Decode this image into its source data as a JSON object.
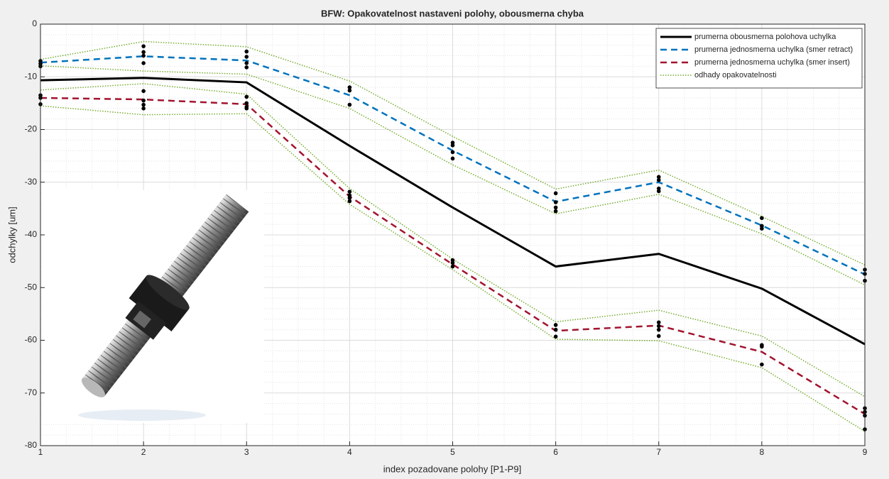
{
  "chart_data": {
    "type": "line",
    "title": "BFW: Opakovatelnost nastaveni polohy, obousmerna chyba",
    "x_label": "index pozadovane polohy [P1-P9]",
    "y_label": "odchylky [um]",
    "x": [
      1,
      2,
      3,
      4,
      5,
      6,
      7,
      8,
      9
    ],
    "xlim": [
      1,
      9
    ],
    "xticks": [
      1,
      2,
      3,
      4,
      5,
      6,
      7,
      8,
      9
    ],
    "ylim": [
      -80,
      0
    ],
    "yticks": [
      -80,
      -70,
      -60,
      -50,
      -40,
      -30,
      -20,
      -10,
      0
    ],
    "grid": true,
    "minor_grid": true,
    "legend": "top-right",
    "series": [
      {
        "name": "prumerna obousmerna polohova uchylka",
        "color": "#000000",
        "style": "solid",
        "values": [
          -10.65,
          -10.2,
          -11.05,
          -23.1,
          -34.8,
          -46,
          -43.6,
          -50.2,
          -60.75
        ]
      },
      {
        "name": "prumerna jednosmerna uchylka (smer retract)",
        "color": "#0072bd",
        "style": "dashed",
        "values": [
          -7.3,
          -6.1,
          -6.9,
          -13.5,
          -24,
          -33.7,
          -30,
          -38.2,
          -47.5
        ]
      },
      {
        "name": "prumerna jednosmerna uchylka (smer insert)",
        "color": "#a2142f",
        "style": "dashed",
        "values": [
          -14,
          -14.3,
          -15.2,
          -32.7,
          -45.6,
          -58.2,
          -57.2,
          -62.2,
          -74
        ]
      },
      {
        "name": "odhady opakovatelnosti",
        "color": "#77ac30",
        "style": "dotted",
        "values": [
          -6.7,
          -3.3,
          -4.3,
          -10.8,
          -21.3,
          -31.3,
          -27.7,
          -36.5,
          -45.7
        ]
      },
      {
        "color": "#77ac30",
        "style": "dotted",
        "values": [
          -7.9,
          -8.9,
          -9.5,
          -16,
          -26.7,
          -36,
          -32.3,
          -39.8,
          -49.5
        ]
      },
      {
        "color": "#77ac30",
        "style": "dotted",
        "values": [
          -12.5,
          -11.3,
          -13.3,
          -31.2,
          -44.6,
          -56.5,
          -54.3,
          -59.2,
          -70.7
        ]
      },
      {
        "color": "#77ac30",
        "style": "dotted",
        "values": [
          -15.5,
          -17.2,
          -17,
          -34.2,
          -46.6,
          -59.8,
          -60.1,
          -65.2,
          -77.3
        ]
      },
      {
        "type": "scatter",
        "color": "#000000",
        "x": [
          1,
          1,
          1,
          1,
          1,
          1,
          2,
          2,
          2,
          2,
          2,
          2,
          2,
          2,
          3,
          3,
          3,
          3,
          3,
          3,
          3,
          3,
          4,
          4,
          4,
          4,
          4,
          4,
          4,
          5,
          5,
          5,
          5,
          5,
          5,
          5,
          6,
          6,
          6,
          6,
          6,
          6,
          6,
          7,
          7,
          7,
          7,
          7,
          7,
          7,
          7,
          8,
          8,
          8,
          8,
          8,
          8,
          9,
          9,
          9,
          9,
          9,
          9,
          9
        ],
        "values": [
          -7,
          -7.5,
          -8,
          -13.5,
          -14,
          -15.2,
          -4.2,
          -5.3,
          -6,
          -7.4,
          -12.7,
          -14.5,
          -15.3,
          -16,
          -5.2,
          -6.2,
          -7.4,
          -8.2,
          -13.8,
          -15,
          -15.7,
          -16,
          -12,
          -12.6,
          -15.3,
          -31.8,
          -32.5,
          -33,
          -33.6,
          -22.5,
          -23,
          -24.3,
          -25.5,
          -44.8,
          -45.3,
          -46,
          -32.1,
          -33.8,
          -34.8,
          -35.5,
          -57.1,
          -58,
          -59.3,
          -29,
          -29.6,
          -31.2,
          -31.7,
          -56.6,
          -57.3,
          -58,
          -59.2,
          -36.8,
          -38.3,
          -38.8,
          -60.9,
          -61.2,
          -64.6,
          -46.6,
          -47.4,
          -48.7,
          -72.9,
          -73.6,
          -74.3,
          -76.9
        ]
      }
    ]
  }
}
